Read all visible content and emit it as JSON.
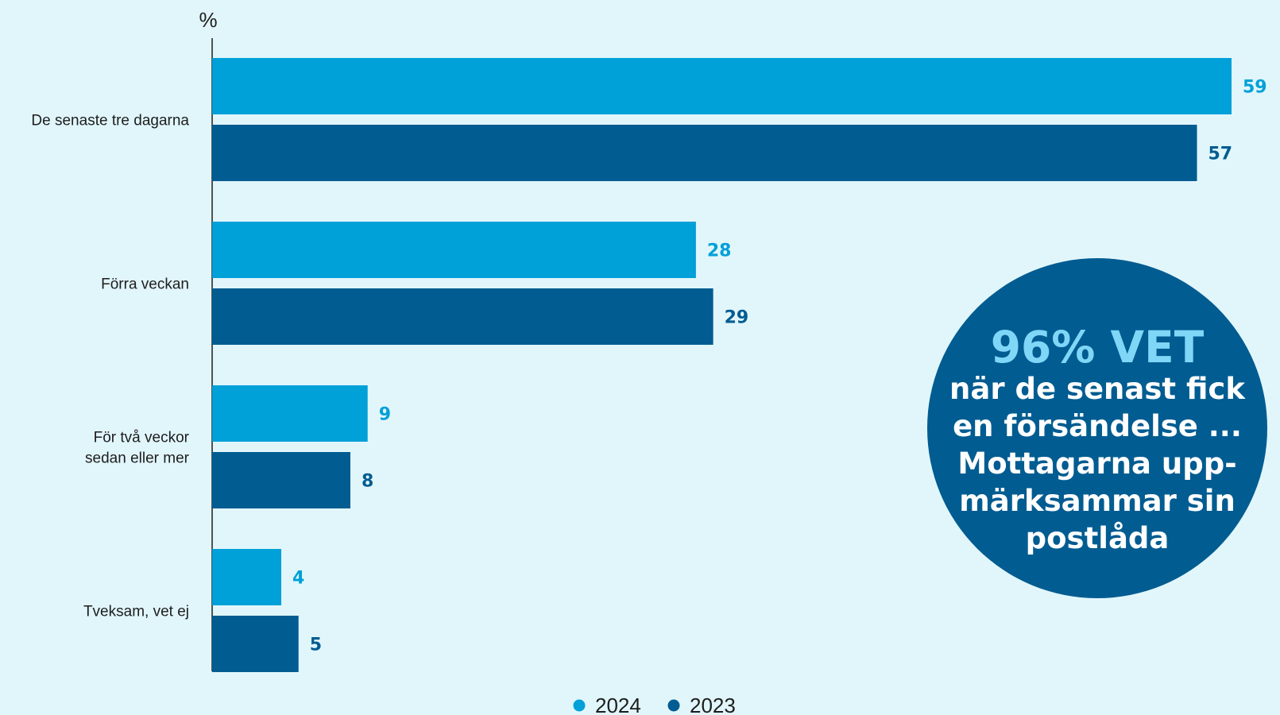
{
  "chart_data": {
    "type": "bar",
    "orientation": "horizontal",
    "ylabel": "%",
    "categories": [
      "De senaste tre dagarna",
      "Förra veckan",
      "För två veckor sedan eller mer",
      "Tveksam, vet ej"
    ],
    "category_lines": [
      [
        "De senaste tre dagarna"
      ],
      [
        "Förra veckan"
      ],
      [
        "För två veckor",
        "sedan eller mer"
      ],
      [
        "Tveksam, vet ej"
      ]
    ],
    "series": [
      {
        "name": "2024",
        "values": [
          59,
          28,
          9,
          4
        ],
        "color": "#00a0d8"
      },
      {
        "name": "2023",
        "values": [
          57,
          29,
          8,
          5
        ],
        "color": "#005c91"
      }
    ],
    "xlim": [
      0,
      59
    ],
    "grid": false,
    "legend_position": "bottom-center"
  },
  "callout": {
    "headline": "96% VET",
    "lines": [
      "när de senast fick",
      "en försändelse ...",
      "Mottagarna upp-",
      "märksammar sin",
      "postlåda"
    ],
    "circle_color": "#005c91",
    "headline_color": "#7fd6f7"
  }
}
